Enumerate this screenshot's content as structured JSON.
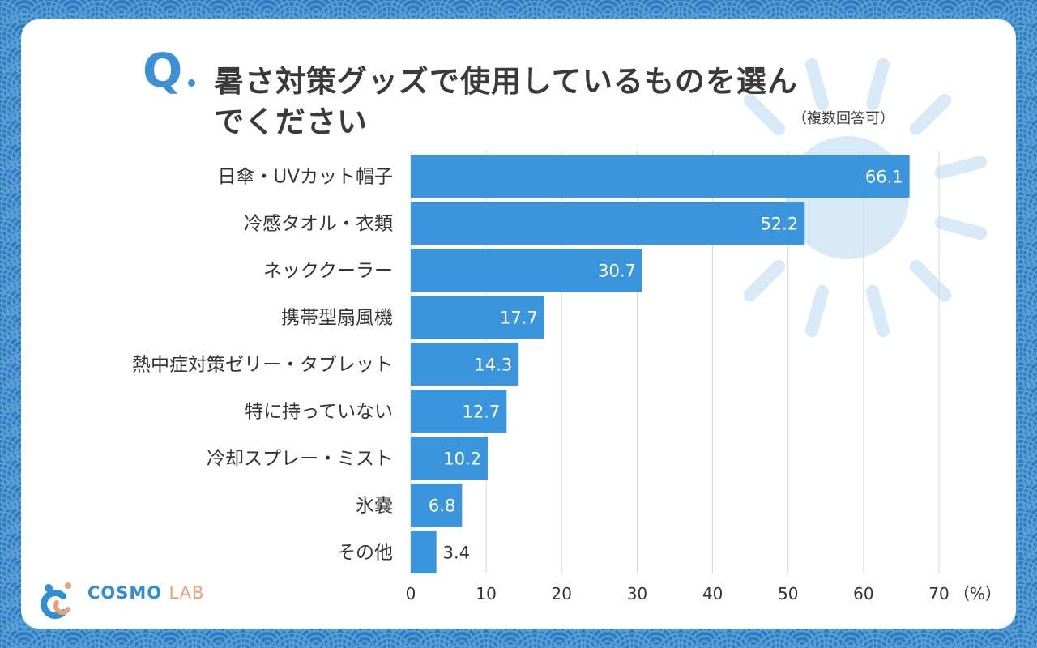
{
  "title": {
    "q_mark": "Q",
    "line1": "暑さ対策グッズで使用しているものを選ん",
    "line2": "でください",
    "note": "（複数回答可）"
  },
  "logo": {
    "main": "COSMO",
    "sub": "LAB"
  },
  "colors": {
    "bar": "#3a95dc",
    "accent": "#3d8fd6",
    "background": "#2f7cc0",
    "sun": "#d8e9f7"
  },
  "chart_data": {
    "type": "bar",
    "orientation": "horizontal",
    "title": "暑さ対策グッズで使用しているものを選んでください",
    "unit_label": "（%）",
    "categories": [
      "日傘・UVカット帽子",
      "冷感タオル・衣類",
      "ネッククーラー",
      "携帯型扇風機",
      "熱中症対策ゼリー・タブレット",
      "特に持っていない",
      "冷却スプレー・ミスト",
      "氷嚢",
      "その他"
    ],
    "values": [
      66.1,
      52.2,
      30.7,
      17.7,
      14.3,
      12.7,
      10.2,
      6.8,
      3.4
    ],
    "value_labels": [
      "66.1",
      "52.2",
      "30.7",
      "17.7",
      "14.3",
      "12.7",
      "10.2",
      "6.8",
      "3.4"
    ],
    "x_ticks": [
      "0",
      "10",
      "20",
      "30",
      "40",
      "50",
      "60",
      "70"
    ],
    "xlim": [
      0,
      70
    ],
    "grid": true
  }
}
